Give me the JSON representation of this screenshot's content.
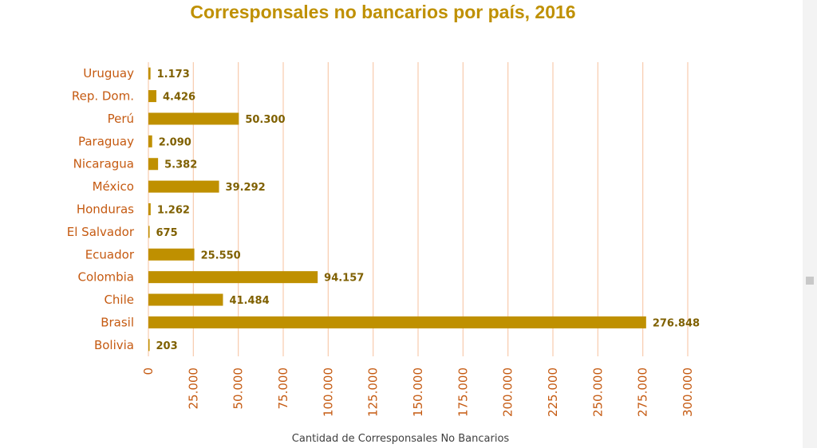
{
  "chart_data": {
    "type": "bar",
    "orientation": "horizontal",
    "title": "Corresponsales no bancarios por país, 2016",
    "xlabel": "Cantidad de Corresponsales No Bancarios",
    "ylabel": "",
    "categories": [
      "Bolivia",
      "Brasil",
      "Chile",
      "Colombia",
      "Ecuador",
      "El Salvador",
      "Honduras",
      "México",
      "Nicaragua",
      "Paraguay",
      "Perú",
      "Rep. Dom.",
      "Uruguay"
    ],
    "values": [
      203,
      276848,
      41484,
      94157,
      25550,
      675,
      1262,
      39292,
      5382,
      2090,
      50300,
      4426,
      1173
    ],
    "value_labels": [
      "203",
      "276.848",
      "41.484",
      "94.157",
      "25.550",
      "675",
      "1.262",
      "39.292",
      "5.382",
      "2.090",
      "50.300",
      "4.426",
      "1.173"
    ],
    "xlim": [
      0,
      300000
    ],
    "ticks": [
      0,
      25000,
      50000,
      75000,
      100000,
      125000,
      150000,
      175000,
      200000,
      225000,
      250000,
      275000,
      300000
    ],
    "tick_labels": [
      "0",
      "25.000",
      "50.000",
      "75.000",
      "100.000",
      "125.000",
      "150.000",
      "175.000",
      "200.000",
      "225.000",
      "250.000",
      "275.000",
      "300.000"
    ],
    "grid": true,
    "legend": "none",
    "bar_color": "#bf9000",
    "grid_color": "#f8cbad",
    "title_color": "#bf9000",
    "label_color": "#c55a11",
    "data_label_color": "#7f6000"
  }
}
